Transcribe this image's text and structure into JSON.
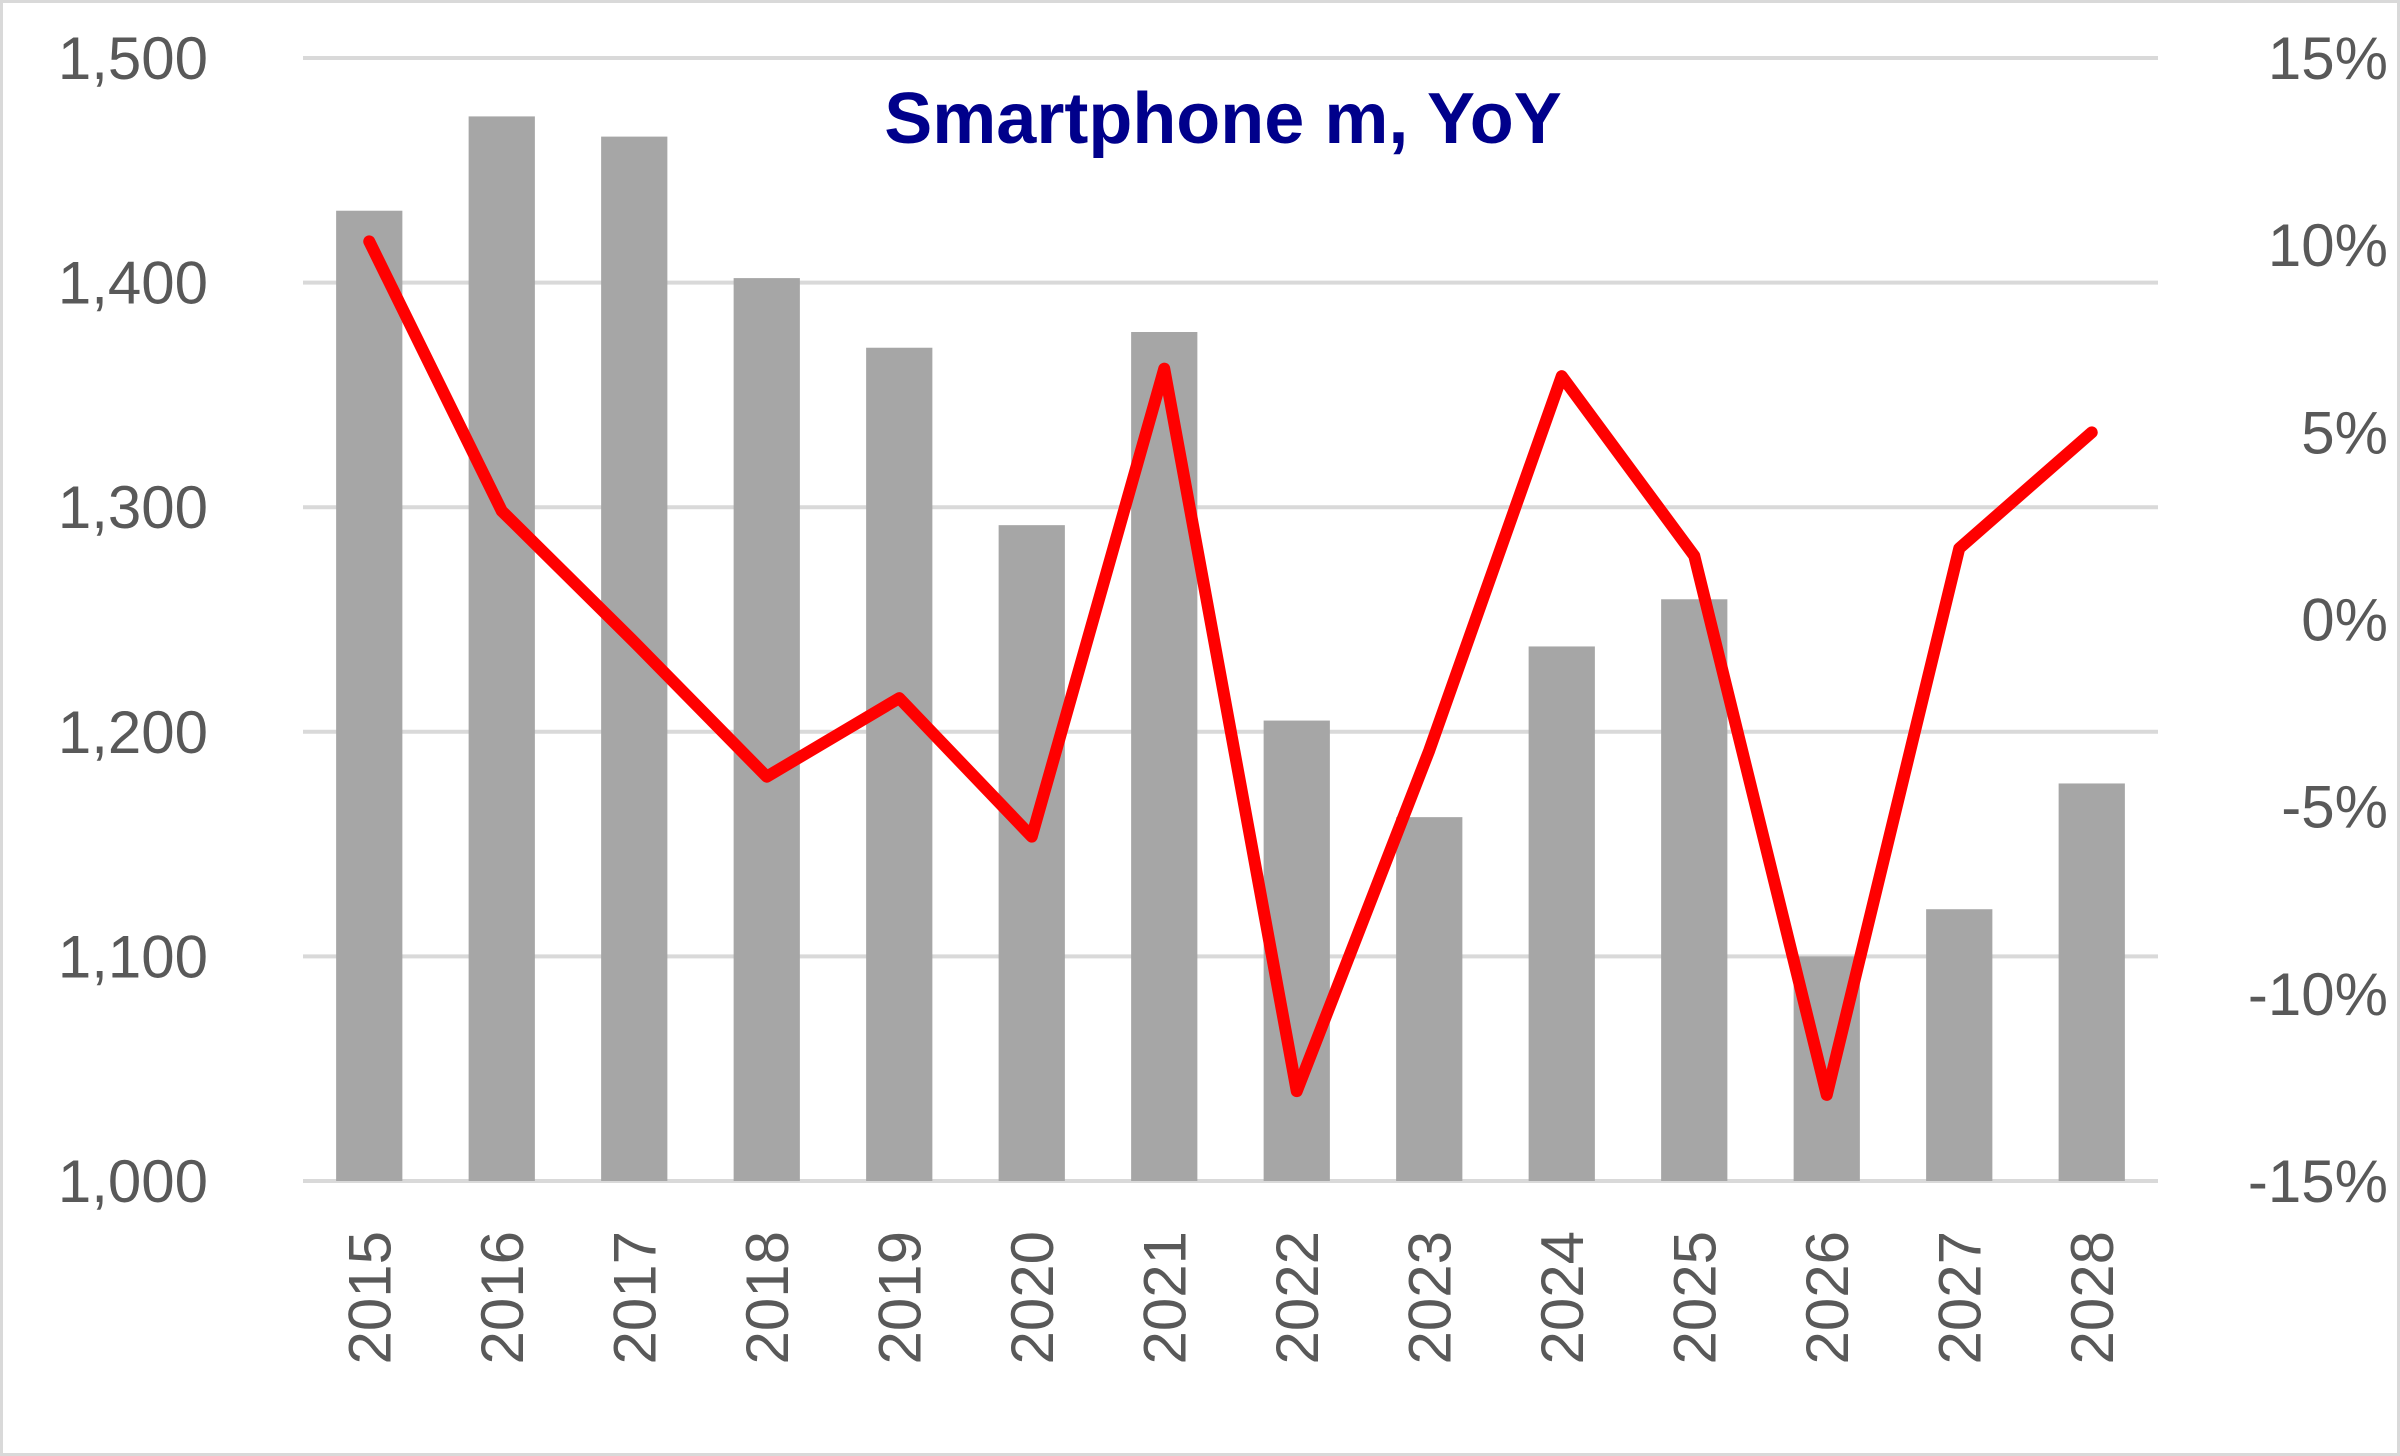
{
  "chart_data": {
    "type": "bar",
    "title": "Smartphone m, YoY",
    "categories": [
      "2015",
      "2016",
      "2017",
      "2018",
      "2019",
      "2020",
      "2021",
      "2022",
      "2023",
      "2024",
      "2025",
      "2026",
      "2027",
      "2028"
    ],
    "series": [
      {
        "type": "bar",
        "axis": "left",
        "values": [
          1432,
          1474,
          1465,
          1402,
          1371,
          1292,
          1378,
          1205,
          1162,
          1238,
          1259,
          1100,
          1121,
          1177
        ]
      },
      {
        "type": "line",
        "axis": "right",
        "values": [
          10.1,
          2.9,
          -0.6,
          -4.2,
          -2.1,
          -5.8,
          6.7,
          -12.6,
          -3.5,
          6.5,
          1.7,
          -12.7,
          1.9,
          5.0
        ]
      }
    ],
    "y_left": {
      "lim": [
        1000,
        1500
      ],
      "ticks": [
        "1,000",
        "1,100",
        "1,200",
        "1,300",
        "1,400",
        "1,500"
      ],
      "tick_values": [
        1000,
        1100,
        1200,
        1300,
        1400,
        1500
      ]
    },
    "y_right": {
      "lim": [
        -15,
        15
      ],
      "ticks": [
        "-15%",
        "-10%",
        "-5%",
        "0%",
        "5%",
        "10%",
        "15%"
      ],
      "tick_values": [
        -15,
        -10,
        -5,
        0,
        5,
        10,
        15
      ]
    },
    "grid": true,
    "legend": "none",
    "colors": {
      "bars": "#a6a6a6",
      "line": "#ff0000",
      "title": "#00008b",
      "axis_text": "#595959",
      "grid": "#d9d9d9"
    }
  }
}
